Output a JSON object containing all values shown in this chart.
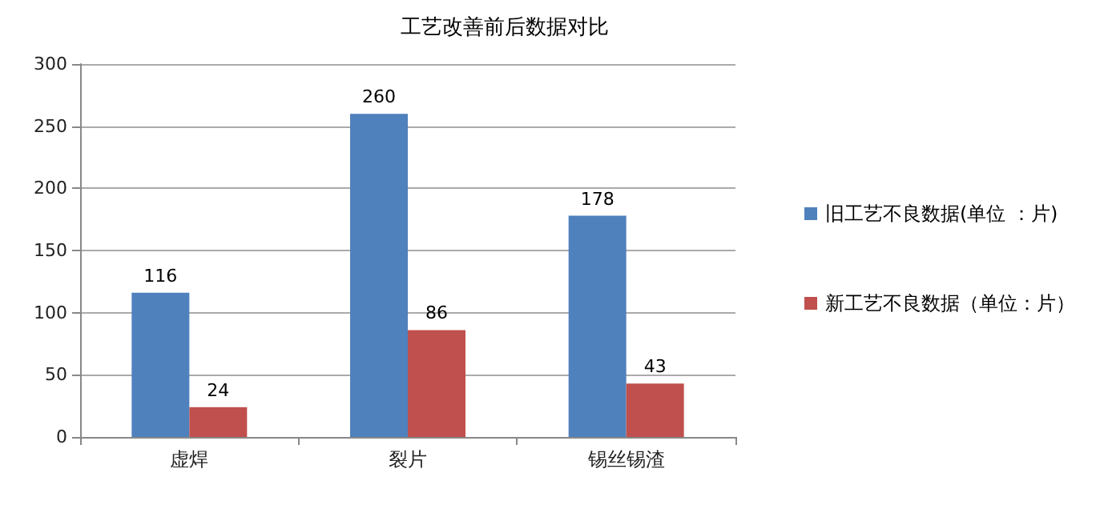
{
  "chart_data": {
    "type": "bar",
    "title": "工艺改善前后数据对比",
    "categories": [
      "虚焊",
      "裂片",
      "锡丝锡渣"
    ],
    "series": [
      {
        "name": "旧工艺不良数据(单位 ：片)",
        "color": "#4f81bd",
        "values": [
          116,
          260,
          178
        ]
      },
      {
        "name": "新工艺不良数据（单位：片）",
        "color": "#c0504d",
        "values": [
          24,
          86,
          43
        ]
      }
    ],
    "ylim": [
      0,
      300
    ],
    "yticks": [
      0,
      50,
      100,
      150,
      200,
      250,
      300
    ],
    "grid": "y",
    "legend": "right",
    "data_labels": true
  }
}
